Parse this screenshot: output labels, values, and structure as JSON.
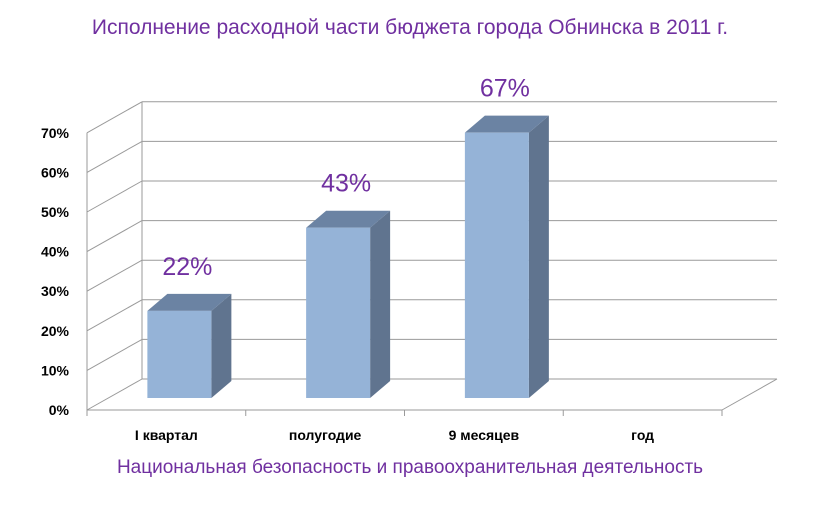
{
  "chart_data": {
    "type": "bar",
    "title": "Исполнение расходной части бюджета города Обнинска в 2011 г.",
    "xlabel": "Национальная безопасность и правоохранительная деятельность",
    "ylabel": "",
    "categories": [
      "I квартал",
      "полугодие",
      "9 месяцев",
      "год"
    ],
    "series": [
      {
        "values": [
          22,
          43,
          67,
          null
        ]
      }
    ],
    "data_labels": [
      "22%",
      "43%",
      "67%",
      ""
    ],
    "ylim": [
      0,
      70
    ],
    "yticks": [
      "0%",
      "10%",
      "20%",
      "30%",
      "40%",
      "50%",
      "60%",
      "70%"
    ],
    "grid": true,
    "legend": "none",
    "style": "3d-column",
    "colors": {
      "bar_front": "#95b3d7",
      "bar_side": "#60748f",
      "bar_top": "#6b83a3",
      "gridline": "#9a9a9a",
      "text_accent": "#7030a0"
    }
  }
}
